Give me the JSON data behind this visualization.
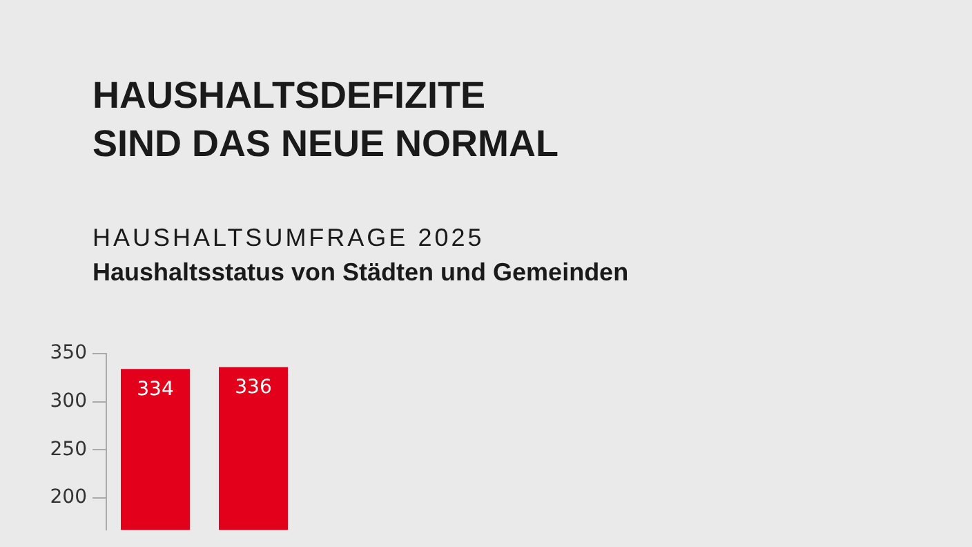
{
  "chart_data": {
    "type": "bar",
    "title": "HAUSHALTSDEFIZITE\nSIND DAS NEUE NORMAL",
    "subtitle": "Haushaltsstatus von Städten und Gemeinden",
    "annotations": [
      "HAUSHALTSUMFRAGE 2025"
    ],
    "categories": [
      null,
      null
    ],
    "values": [
      334,
      336
    ],
    "color": "#e2001a",
    "ylim": [
      167,
      350
    ],
    "yticks": [
      200,
      250,
      300,
      350
    ],
    "grid": false,
    "legend": false,
    "data_labels": true,
    "tick_labels": "y"
  }
}
